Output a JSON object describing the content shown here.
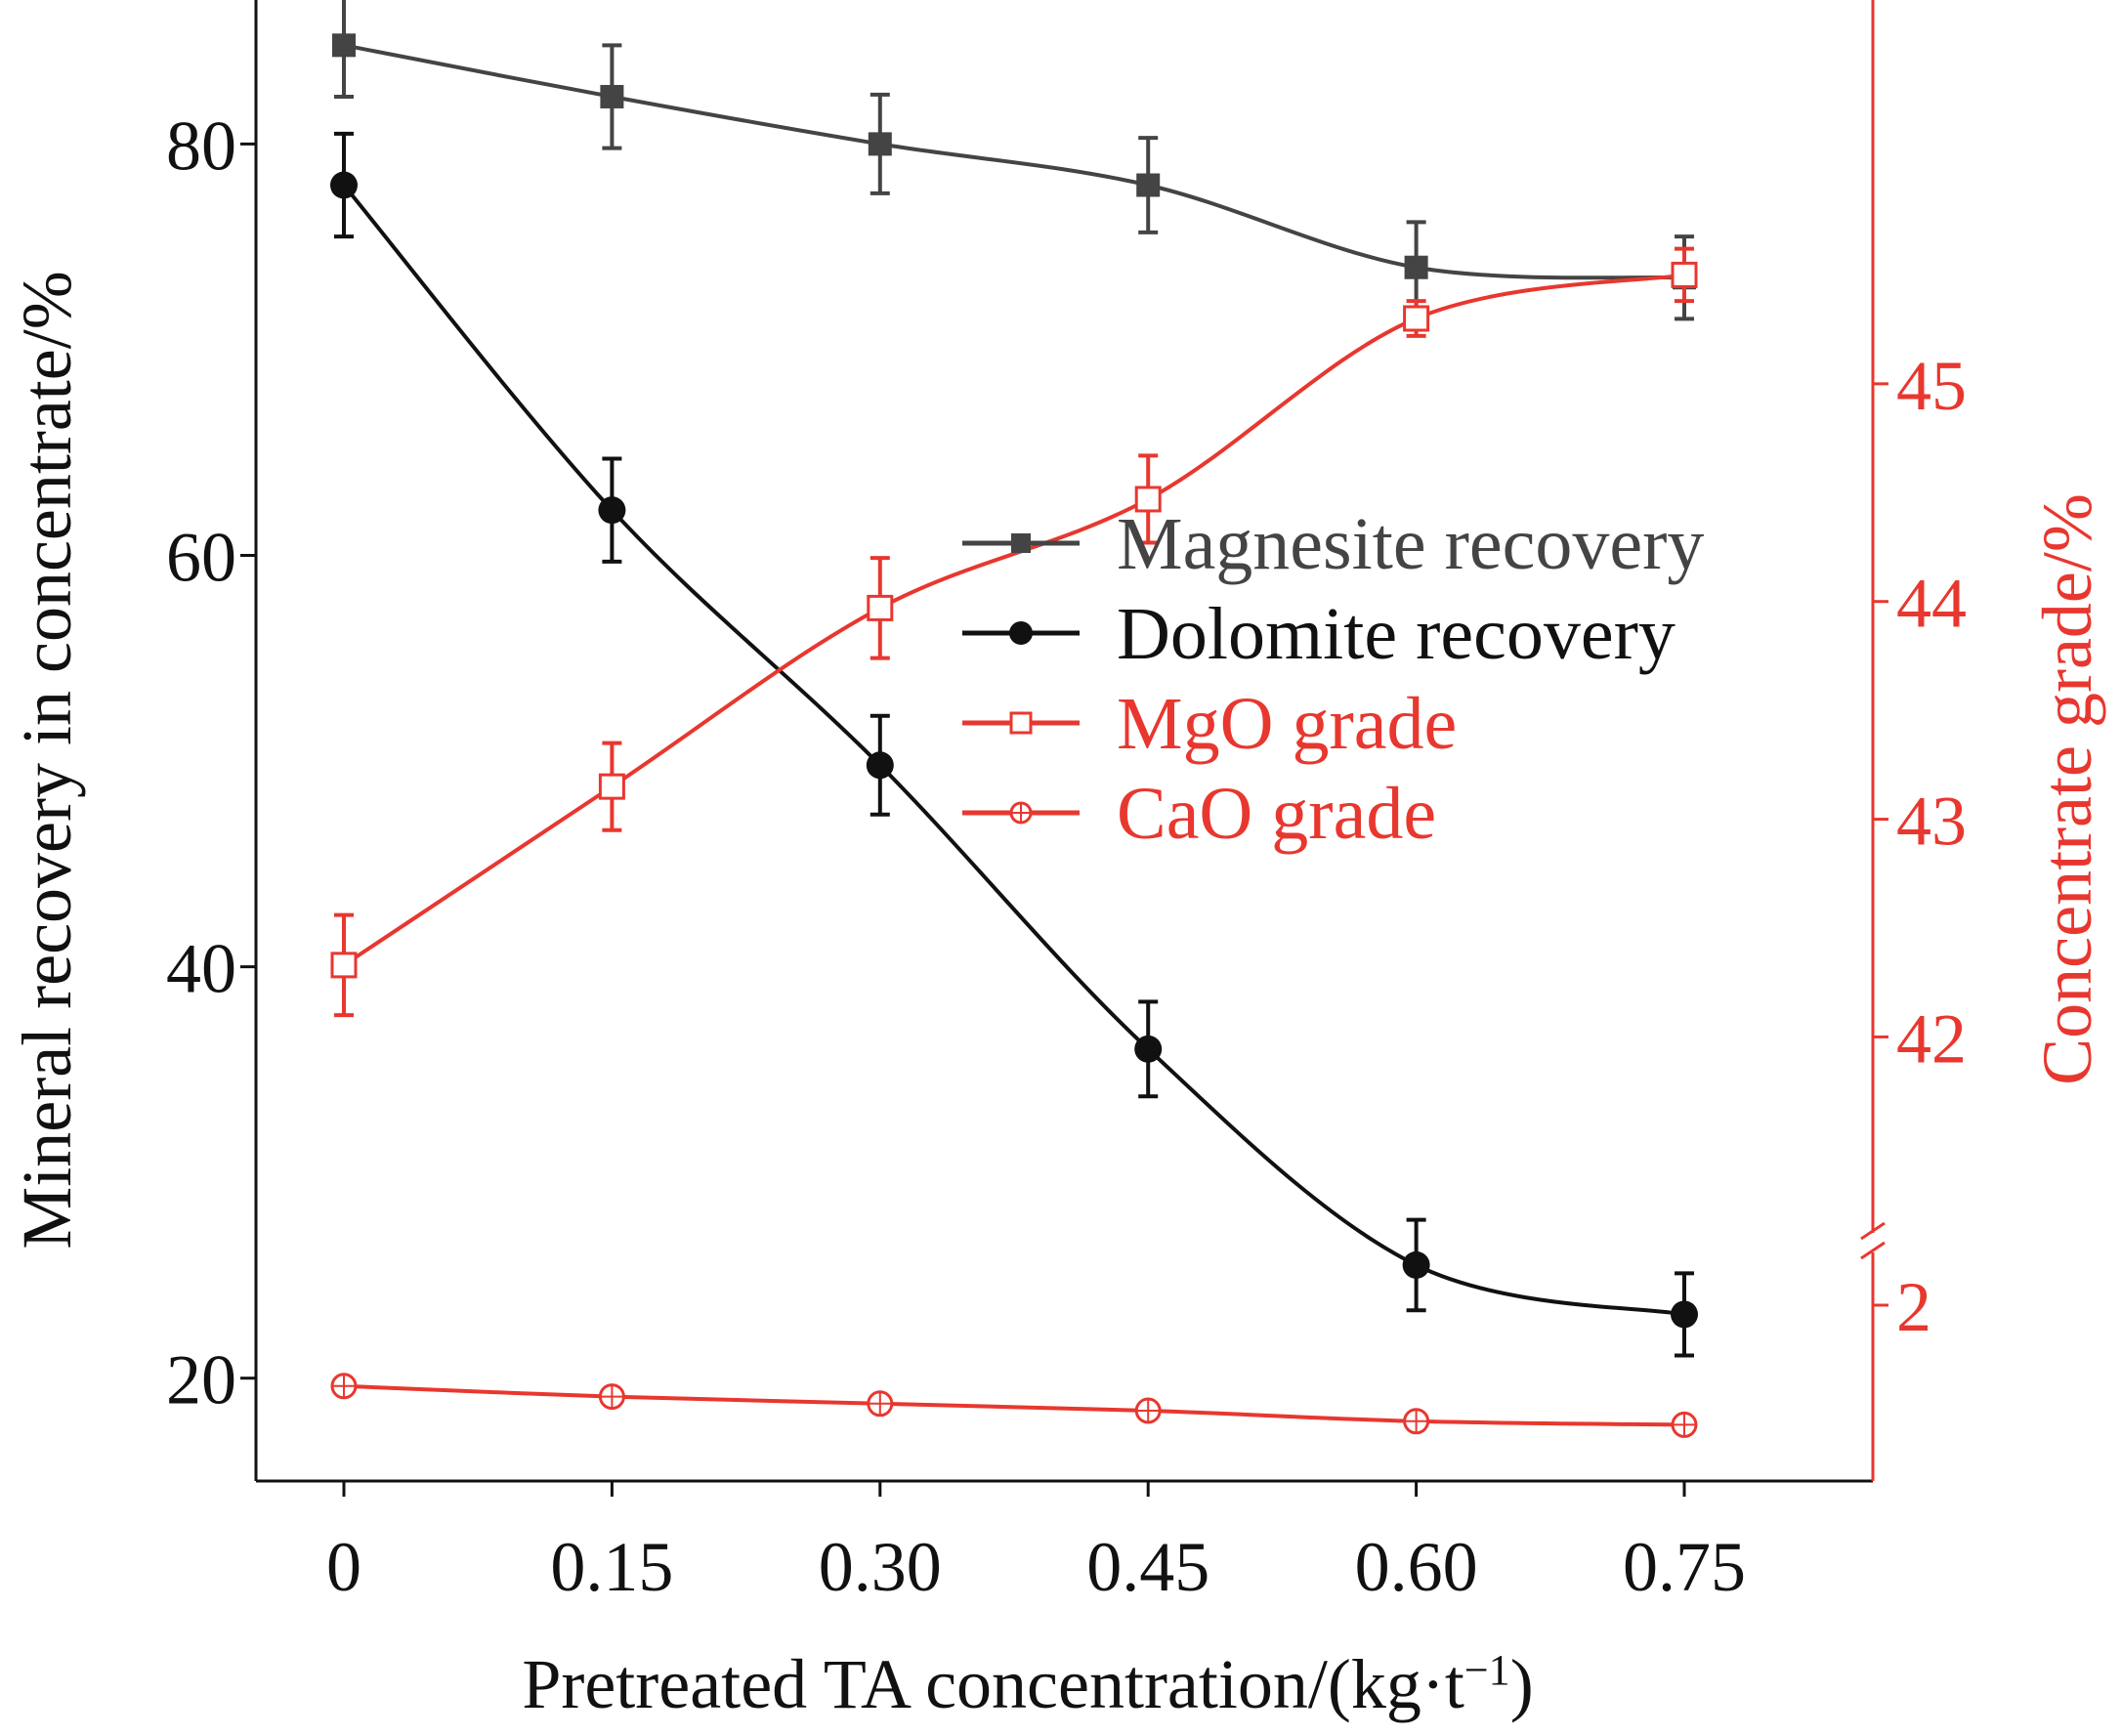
{
  "chart_data": {
    "type": "line",
    "xlabel": "Pretreated TA concentration/(kg·t",
    "xlabel_sup": "−1",
    "xlabel_close": ")",
    "ylabel_left": "Mineral recovery in concentrate/%",
    "ylabel_right": "Concentrate grade/%",
    "x_ticks": [
      "0",
      "0.15",
      "0.30",
      "0.45",
      "0.60",
      "0.75"
    ],
    "x": [
      0,
      0.15,
      0.3,
      0.45,
      0.6,
      0.75
    ],
    "left_axis": {
      "ticks": [
        20,
        40,
        60,
        80
      ],
      "ylim": [
        15,
        87
      ]
    },
    "right_axis_upper": {
      "ticks": [
        42,
        43,
        44,
        45
      ],
      "ylim": [
        41.1,
        46.7
      ]
    },
    "right_axis_lower": {
      "ticks": [
        2
      ],
      "ylim": [
        1.5,
        2.15
      ]
    },
    "right_axis_break": true,
    "grid": false,
    "legend_position": "center-right",
    "colors": {
      "black": "#111111",
      "gray": "#444444",
      "red": "#e8372f"
    },
    "series": [
      {
        "name": "Magnesite recovery",
        "axis": "left",
        "color": "#444444",
        "marker": "square-filled",
        "values": [
          84.8,
          82.3,
          80.0,
          78.0,
          74.0,
          73.5
        ],
        "errors": [
          2.5,
          2.5,
          2.4,
          2.3,
          2.2,
          2.0
        ]
      },
      {
        "name": "Dolomite recovery",
        "axis": "left",
        "color": "#111111",
        "marker": "circle-filled",
        "values": [
          78.0,
          62.2,
          49.8,
          36.0,
          25.5,
          23.1
        ],
        "errors": [
          2.5,
          2.5,
          2.4,
          2.3,
          2.2,
          2.0
        ]
      },
      {
        "name": "MgO grade",
        "axis": "right_upper",
        "color": "#e8372f",
        "marker": "square-open",
        "values": [
          42.33,
          43.15,
          43.97,
          44.47,
          45.3,
          45.5
        ],
        "errors": [
          0.23,
          0.2,
          0.23,
          0.2,
          0.08,
          0.12
        ]
      },
      {
        "name": "CaO grade",
        "axis": "right_lower",
        "color": "#e8372f",
        "marker": "circle-open",
        "values": [
          1.77,
          1.74,
          1.72,
          1.7,
          1.67,
          1.66
        ],
        "errors": [
          0,
          0,
          0,
          0,
          0,
          0
        ]
      }
    ]
  }
}
